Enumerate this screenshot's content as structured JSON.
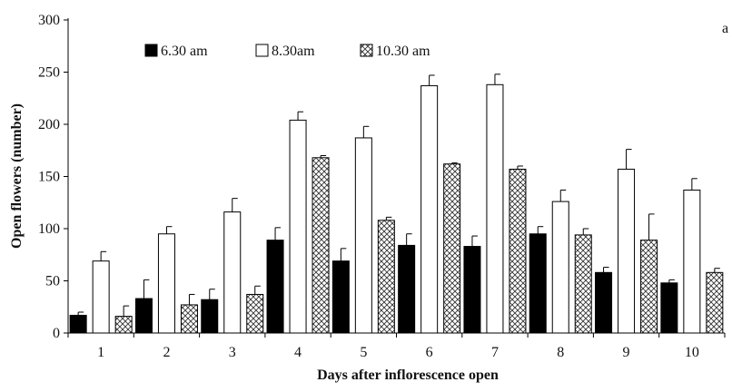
{
  "panel_label": "a",
  "chart_data": {
    "type": "bar",
    "title": "",
    "xlabel": "Days after inflorescence open",
    "ylabel": "Open flowers (number)",
    "ylim": [
      0,
      300
    ],
    "yticks": [
      0,
      50,
      100,
      150,
      200,
      250,
      300
    ],
    "categories": [
      "1",
      "2",
      "3",
      "4",
      "5",
      "6",
      "7",
      "8",
      "9",
      "10"
    ],
    "legend_position": "top-center",
    "grid": false,
    "series": [
      {
        "name": "6.30 am",
        "fill": "#000000",
        "pattern": "solid",
        "values": [
          17,
          33,
          32,
          89,
          69,
          84,
          83,
          95,
          58,
          48
        ],
        "errors": [
          3,
          18,
          10,
          12,
          12,
          11,
          10,
          7,
          5,
          3
        ]
      },
      {
        "name": "8.30am",
        "fill": "#ffffff",
        "pattern": "open",
        "values": [
          69,
          95,
          116,
          204,
          187,
          237,
          238,
          126,
          157,
          137
        ],
        "errors": [
          9,
          7,
          13,
          8,
          11,
          10,
          10,
          11,
          19,
          11
        ]
      },
      {
        "name": "10.30 am",
        "fill": "#ffffff",
        "pattern": "crosshatch",
        "values": [
          16,
          27,
          37,
          168,
          108,
          162,
          157,
          94,
          89,
          58
        ],
        "errors": [
          10,
          10,
          8,
          2,
          3,
          1,
          3,
          6,
          25,
          4
        ]
      }
    ]
  }
}
